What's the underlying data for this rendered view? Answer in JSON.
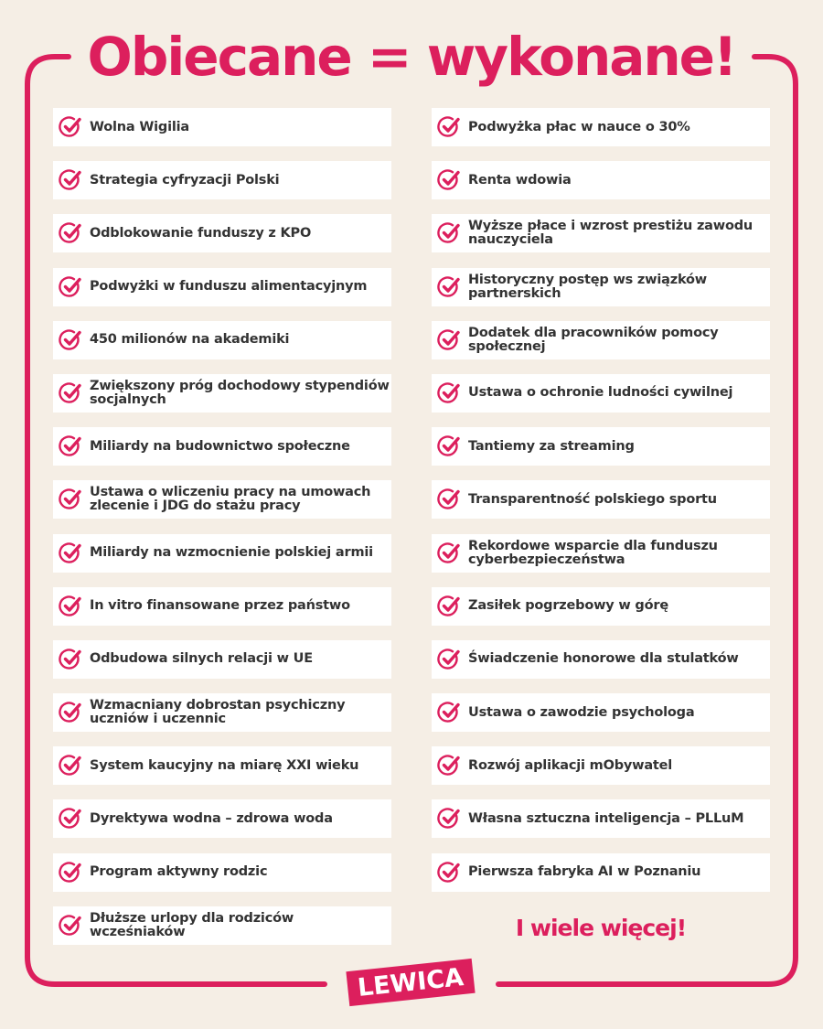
{
  "title": "Obiecane = wykonane!",
  "brand_color": "#dc1f5d",
  "check_icon": "check-circle-icon",
  "left_items": [
    "Wolna Wigilia",
    "Strategia cyfryzacji Polski",
    "Odblokowanie funduszy z KPO",
    "Podwyżki w funduszu alimentacyjnym",
    "450 milionów na akademiki",
    "Zwiększony próg dochodowy stypendiów socjalnych",
    "Miliardy na budownictwo społeczne",
    "Ustawa o wliczeniu pracy na umowach zlecenie i JDG do stażu pracy",
    "Miliardy na wzmocnienie polskiej armii",
    "In vitro finansowane przez państwo",
    "Odbudowa silnych relacji w UE",
    "Wzmacniany dobrostan psychiczny uczniów i uczennic",
    "System kaucyjny na miarę XXI wieku",
    "Dyrektywa wodna – zdrowa woda",
    "Program aktywny rodzic",
    "Dłuższe urlopy dla rodziców wcześniaków"
  ],
  "right_items": [
    "Podwyżka płac w nauce o 30%",
    "Renta wdowia",
    "Wyższe płace i wzrost prestiżu zawodu nauczyciela",
    "Historyczny postęp ws związków partnerskich",
    "Dodatek dla pracowników pomocy społecznej",
    "Ustawa o ochronie ludności cywilnej",
    "Tantiemy za streaming",
    "Transparentność polskiego sportu",
    "Rekordowe wsparcie dla funduszu cyberbezpieczeństwa",
    "Zasiłek pogrzebowy w górę",
    "Świadczenie honorowe dla stulatków",
    "Ustawa o zawodzie psychologa",
    "Rozwój aplikacji mObywatel",
    "Własna sztuczna inteligencja – PLLuM",
    "Pierwsza fabryka AI w Poznaniu"
  ],
  "more": "I wiele więcej!",
  "logo": "LEWICA"
}
